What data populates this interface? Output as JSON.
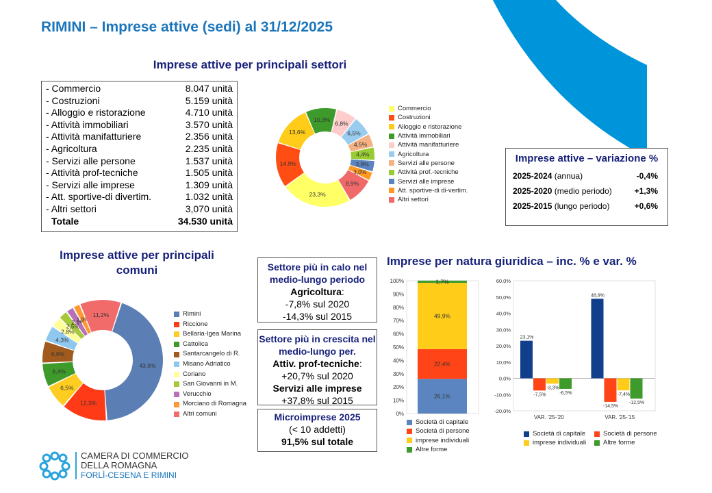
{
  "page_title": "RIMINI – Imprese attive (sedi) al 31/12/2025",
  "sectors": {
    "title": "Imprese attive per principali settori",
    "rows": [
      {
        "label": "- Commercio",
        "value": "8.047 unità"
      },
      {
        "label": "- Costruzioni",
        "value": "5.159 unità"
      },
      {
        "label": "- Alloggio e ristorazione",
        "value": "4.710 unità"
      },
      {
        "label": "- Attività immobiliari",
        "value": "3.570 unità"
      },
      {
        "label": "- Attività manifatturiere",
        "value": "2.356 unità"
      },
      {
        "label": "- Agricoltura",
        "value": "2.235 unità"
      },
      {
        "label": "- Servizi alle persone",
        "value": "1.537 unità"
      },
      {
        "label": "- Attività prof-tecniche",
        "value": "1.505 unità"
      },
      {
        "label": "- Servizi alle imprese",
        "value": "1.309 unità"
      },
      {
        "label": "- Att. sportive-di divertim.",
        "value": "1.032 unità"
      },
      {
        "label": "- Altri settori",
        "value": "3,070 unità"
      }
    ],
    "total_label": "Totale",
    "total_value": "34.530 unità"
  },
  "variation": {
    "title": "Imprese attive – variazione %",
    "rows": [
      {
        "period": "2025-2024",
        "desc": " (annua)",
        "value": "-0,4%"
      },
      {
        "period": "2025-2020",
        "desc": " (medio periodo)",
        "value": "+1,3%"
      },
      {
        "period": "2025-2015",
        "desc": " (lungo periodo)",
        "value": "+0,6%"
      }
    ]
  },
  "comuni_title": "Imprese attive per principali comuni",
  "info_boxes": {
    "calo": {
      "heading": "Settore più in calo nel medio-lungo periodo",
      "sector": "Agricoltura",
      "suffix": ":",
      "line1": "-7,8% sul 2020",
      "line2": "-14,3% sul 2015"
    },
    "crescita": {
      "heading": "Settore più in crescita nel medio-lungo per.",
      "sector1": "Attiv. prof-tecniche",
      "suffix1": ":",
      "line1": "+20,7% sul 2020",
      "sector2": "Servizi alle imprese",
      "line2": "+37,8% sul 2015"
    },
    "micro": {
      "heading": "Microimprese 2025",
      "sub": "(< 10 addetti)",
      "value": "91,5% sul totale"
    }
  },
  "natura_title": "Imprese per natura giuridica – inc. % e var. %",
  "logo": {
    "line1": "CAMERA DI COMMERCIO",
    "line2": "DELLA ROMAGNA",
    "line3": "FORLÌ-CESENA E RIMINI"
  },
  "colors": {
    "accent": "#1b75bb",
    "navy": "#17217a",
    "deco": "#0095da"
  },
  "chart_data": [
    {
      "id": "settori",
      "type": "pie",
      "donut": true,
      "labels": [
        "Commercio",
        "Costruzioni",
        "Alloggio e ristorazione",
        "Attività immobiliari",
        "Attività manifatturiere",
        "Agricoltura",
        "Servizi alle persone",
        "Attività prof.-tecniche",
        "Servizi alle imprese",
        "Att. sportive-di di-vertim.",
        "Altri settori"
      ],
      "values": [
        23.3,
        14.9,
        13.6,
        10.3,
        6.8,
        6.5,
        4.5,
        4.4,
        3.8,
        3.0,
        8.9
      ],
      "value_labels": [
        "23,3%",
        "14,9%",
        "13,6%",
        "10,3%",
        "6,8%",
        "6,5%",
        "4,5%",
        "4,4%",
        "3,8%",
        "3,0%",
        "8,9%"
      ],
      "colors": [
        "#ffff66",
        "#ff4d14",
        "#ffcc1a",
        "#3e9a2a",
        "#ffcccc",
        "#99ccee",
        "#f4b183",
        "#99cc33",
        "#5b85c0",
        "#ff9922",
        "#f06a6a"
      ]
    },
    {
      "id": "comuni",
      "type": "pie",
      "donut": true,
      "labels": [
        "Rimini",
        "Riccione",
        "Bellaria-Igea Marina",
        "Cattolica",
        "Santarcangelo di R.",
        "Misano Adriatico",
        "Coriano",
        "San Giovanni in M.",
        "Verucchio",
        "Morciano di Romagna",
        "Altri comuni"
      ],
      "values": [
        43.9,
        12.3,
        6.5,
        6.4,
        6.0,
        4.3,
        2.8,
        2.5,
        2.1,
        1.9,
        11.2
      ],
      "value_labels": [
        "43,9%",
        "12,3%",
        "6,5%",
        "6,4%",
        "6,0%",
        "4,3%",
        "2,8%",
        "2,5%",
        "2,1%",
        "1,9%",
        "11,2%"
      ],
      "colors": [
        "#5b7fb5",
        "#ff3b17",
        "#ffcc22",
        "#3e9a2a",
        "#a05a1e",
        "#8ec8ee",
        "#ffff99",
        "#a8c83c",
        "#b870b8",
        "#ff9933",
        "#f26b6b"
      ]
    },
    {
      "id": "natura_inc",
      "type": "bar",
      "stacked": true,
      "categories": [
        ""
      ],
      "series": [
        {
          "name": "Società di capitale",
          "values": [
            26.1
          ],
          "labels": [
            "26,1%"
          ],
          "color": "#5b85c0"
        },
        {
          "name": "Società di persone",
          "values": [
            22.4
          ],
          "labels": [
            "22,4%"
          ],
          "color": "#ff4517"
        },
        {
          "name": "imprese individuali",
          "values": [
            49.9
          ],
          "labels": [
            "49,9%"
          ],
          "color": "#ffcc1a"
        },
        {
          "name": "Altre forme",
          "values": [
            1.7
          ],
          "labels": [
            "1,7%"
          ],
          "color": "#3e9a2a"
        }
      ],
      "ylim": [
        0,
        100
      ],
      "yticks": [
        "0%",
        "10%",
        "20%",
        "30%",
        "40%",
        "50%",
        "60%",
        "70%",
        "80%",
        "90%",
        "100%"
      ]
    },
    {
      "id": "natura_var",
      "type": "bar",
      "categories": [
        "VAR. '25-'20",
        "VAR. '25-'15"
      ],
      "series": [
        {
          "name": "Società di capitale",
          "values": [
            23.1,
            48.9
          ],
          "labels": [
            "23,1%",
            "48,9%"
          ],
          "color": "#123f8c"
        },
        {
          "name": "Società di persone",
          "values": [
            -7.5,
            -14.5
          ],
          "labels": [
            "-7,5%",
            "-14,5%"
          ],
          "color": "#ff4517"
        },
        {
          "name": "imprese individuali",
          "values": [
            -3.3,
            -7.4
          ],
          "labels": [
            "-3,3%",
            "-7,4%"
          ],
          "color": "#ffcc1a"
        },
        {
          "name": "Altre forme",
          "values": [
            -6.5,
            -12.5
          ],
          "labels": [
            "-6,5%",
            "-12,5%"
          ],
          "color": "#3e9a2a"
        }
      ],
      "ylim": [
        -20,
        60
      ],
      "yticks": [
        "-20,0%",
        "-10,0%",
        "0,0%",
        "10,0%",
        "20,0%",
        "30,0%",
        "40,0%",
        "50,0%",
        "60,0%"
      ]
    }
  ]
}
